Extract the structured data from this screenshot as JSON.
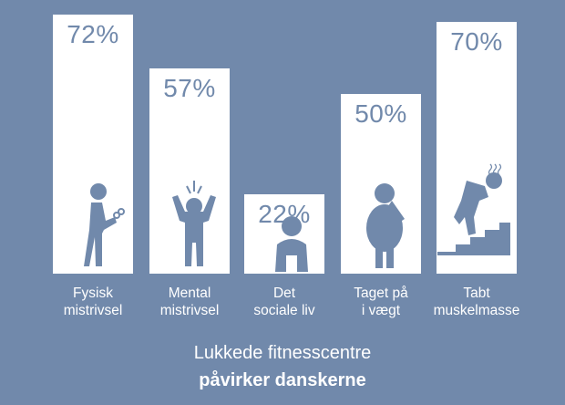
{
  "chart_data": {
    "type": "bar",
    "categories": [
      "Fysisk\nmistrivsel",
      "Mental\nmistrivsel",
      "Det\nsociale liv",
      "Taget på\ni vægt",
      "Tabt\nmuskelmasse"
    ],
    "values": [
      72,
      57,
      22,
      50,
      70
    ],
    "value_labels": [
      "72%",
      "57%",
      "22%",
      "50%",
      "70%"
    ],
    "icons": [
      "coughing-person-icon",
      "stressed-person-icon",
      "sad-sitting-person-icon",
      "overweight-person-icon",
      "tired-person-stairs-icon"
    ],
    "ylim": [
      0,
      72
    ],
    "grid": false,
    "bar_color": "#ffffff",
    "background_color": "#7189ab"
  },
  "title": {
    "line1": "Lukkede fitnesscentre",
    "line2": "påvirker danskerne"
  }
}
